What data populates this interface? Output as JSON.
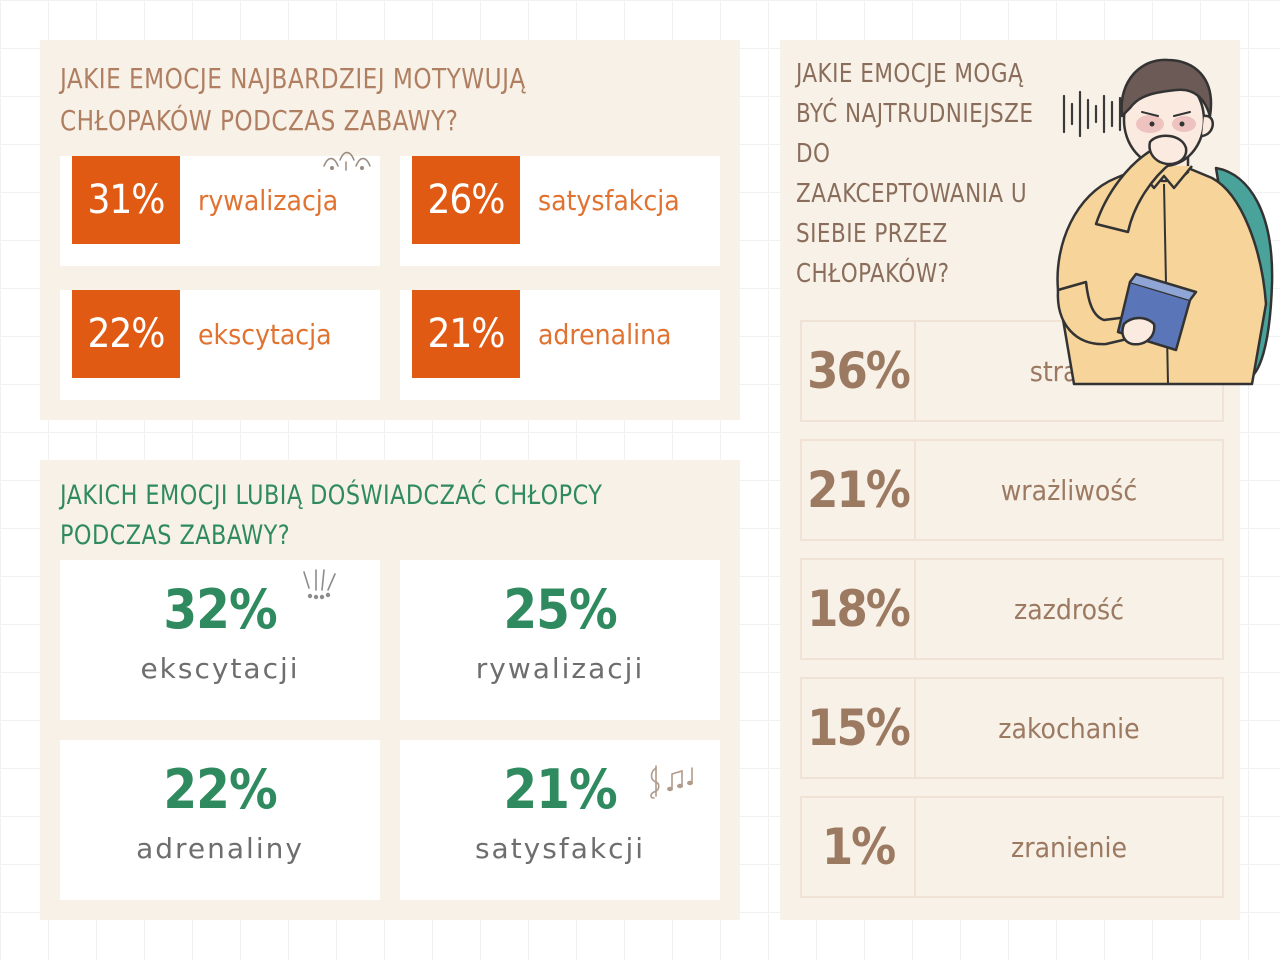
{
  "motivation": {
    "title": "JAKIE EMOCJE NAJBARDZIEJ MOTYWUJĄ CHŁOPAKÓW PODCZAS ZABAWY?",
    "items": [
      {
        "percent": "31%",
        "label": "rywalizacja"
      },
      {
        "percent": "26%",
        "label": "satysfakcja"
      },
      {
        "percent": "22%",
        "label": "ekscytacja"
      },
      {
        "percent": "21%",
        "label": "adrenalina"
      }
    ]
  },
  "enjoy": {
    "title": "JAKICH EMOCJI LUBIĄ DOŚWIADCZAĆ CHŁOPCY PODCZAS ZABAWY?",
    "items": [
      {
        "percent": "32%",
        "label": "ekscytacji"
      },
      {
        "percent": "25%",
        "label": "rywalizacji"
      },
      {
        "percent": "22%",
        "label": "adrenaliny"
      },
      {
        "percent": "21%",
        "label": "satysfakcji"
      }
    ]
  },
  "difficult": {
    "title": "JAKIE EMOCJE MOGĄ BYĆ NAJTRUDNIEJSZE DO ZAAKCEPTOWANIA U SIEBIE PRZEZ CHŁOPAKÓW?",
    "items": [
      {
        "percent": "36%",
        "label": "strach"
      },
      {
        "percent": "21%",
        "label": "wrażliwość"
      },
      {
        "percent": "18%",
        "label": "zazdrość"
      },
      {
        "percent": "15%",
        "label": "zakochanie"
      },
      {
        "percent": "1%",
        "label": "zranienie"
      }
    ]
  },
  "colors": {
    "panel_bg": "#f8f1e7",
    "accent_orange": "#e05a13",
    "label_orange": "#e07331",
    "accent_green": "#2f8b5f",
    "brown": "#9c7a62"
  },
  "icons": [
    "sparkle-icon",
    "exclamation-icon",
    "music-notes-icon",
    "sound-wave-icon",
    "worried-boy-illustration"
  ]
}
